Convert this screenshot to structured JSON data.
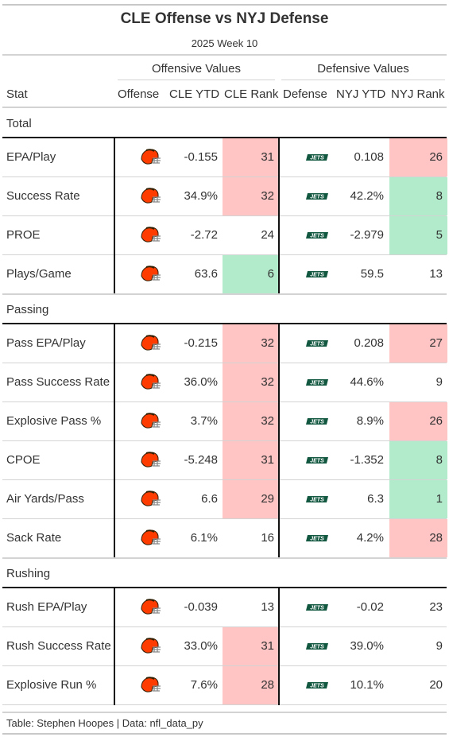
{
  "title": "CLE Offense vs NYJ Defense",
  "subtitle": "2025 Week 10",
  "spanners": {
    "offense": "Offensive Values",
    "defense": "Defensive Values"
  },
  "columns": {
    "stat": "Stat",
    "offense": "Offense",
    "off_ytd": "CLE YTD",
    "off_rank": "CLE Rank",
    "defense": "Defense",
    "def_ytd": "NYJ YTD",
    "def_rank": "NYJ Rank"
  },
  "logos": {
    "offense": "cleveland-browns-helmet-icon",
    "defense": "new-york-jets-wordmark-icon",
    "jets_wordmark": "JETS"
  },
  "colors": {
    "bad_rank": "#ffc4c4",
    "good_rank": "#b1ebcb",
    "browns_orange": "#ff3c00",
    "browns_brown": "#311d00",
    "jets_green": "#125740"
  },
  "footer": "Table: Stephen Hoopes | Data: nfl_data_py",
  "chart_data": {
    "type": "table",
    "groups": [
      {
        "label": "Total",
        "rows": [
          {
            "stat": "EPA/Play",
            "off_ytd": "-0.155",
            "off_rank": 31,
            "off_rank_color": "bad",
            "def_ytd": "0.108",
            "def_rank": 26,
            "def_rank_color": "bad"
          },
          {
            "stat": "Success Rate",
            "off_ytd": "34.9%",
            "off_rank": 32,
            "off_rank_color": "bad",
            "def_ytd": "42.2%",
            "def_rank": 8,
            "def_rank_color": "good"
          },
          {
            "stat": "PROE",
            "off_ytd": "-2.72",
            "off_rank": 24,
            "off_rank_color": "none",
            "def_ytd": "-2.979",
            "def_rank": 5,
            "def_rank_color": "good"
          },
          {
            "stat": "Plays/Game",
            "off_ytd": "63.6",
            "off_rank": 6,
            "off_rank_color": "good",
            "def_ytd": "59.5",
            "def_rank": 13,
            "def_rank_color": "none"
          }
        ]
      },
      {
        "label": "Passing",
        "rows": [
          {
            "stat": "Pass EPA/Play",
            "off_ytd": "-0.215",
            "off_rank": 32,
            "off_rank_color": "bad",
            "def_ytd": "0.208",
            "def_rank": 27,
            "def_rank_color": "bad"
          },
          {
            "stat": "Pass Success Rate",
            "off_ytd": "36.0%",
            "off_rank": 32,
            "off_rank_color": "bad",
            "def_ytd": "44.6%",
            "def_rank": 9,
            "def_rank_color": "none"
          },
          {
            "stat": "Explosive Pass %",
            "off_ytd": "3.7%",
            "off_rank": 32,
            "off_rank_color": "bad",
            "def_ytd": "8.9%",
            "def_rank": 26,
            "def_rank_color": "bad"
          },
          {
            "stat": "CPOE",
            "off_ytd": "-5.248",
            "off_rank": 31,
            "off_rank_color": "bad",
            "def_ytd": "-1.352",
            "def_rank": 8,
            "def_rank_color": "good"
          },
          {
            "stat": "Air Yards/Pass",
            "off_ytd": "6.6",
            "off_rank": 29,
            "off_rank_color": "bad",
            "def_ytd": "6.3",
            "def_rank": 1,
            "def_rank_color": "good"
          },
          {
            "stat": "Sack Rate",
            "off_ytd": "6.1%",
            "off_rank": 16,
            "off_rank_color": "none",
            "def_ytd": "4.2%",
            "def_rank": 28,
            "def_rank_color": "bad"
          }
        ]
      },
      {
        "label": "Rushing",
        "rows": [
          {
            "stat": "Rush EPA/Play",
            "off_ytd": "-0.039",
            "off_rank": 13,
            "off_rank_color": "none",
            "def_ytd": "-0.02",
            "def_rank": 23,
            "def_rank_color": "none"
          },
          {
            "stat": "Rush Success Rate",
            "off_ytd": "33.0%",
            "off_rank": 31,
            "off_rank_color": "bad",
            "def_ytd": "39.0%",
            "def_rank": 9,
            "def_rank_color": "none"
          },
          {
            "stat": "Explosive Run %",
            "off_ytd": "7.6%",
            "off_rank": 28,
            "off_rank_color": "bad",
            "def_ytd": "10.1%",
            "def_rank": 20,
            "def_rank_color": "none"
          }
        ]
      }
    ]
  }
}
